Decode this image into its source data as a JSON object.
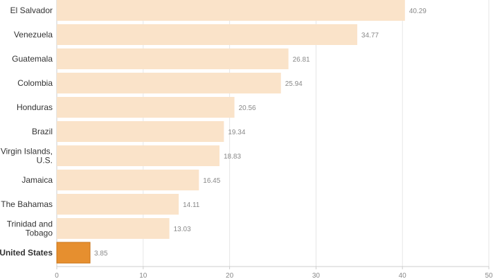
{
  "chart_data": {
    "type": "bar",
    "orientation": "horizontal",
    "categories": [
      "El Salvador",
      "Venezuela",
      "Guatemala",
      "Colombia",
      "Honduras",
      "Brazil",
      "Virgin Islands, U.S.",
      "Jamaica",
      "The Bahamas",
      "Trinidad and Tobago",
      "United States"
    ],
    "category_lines": [
      [
        "El Salvador"
      ],
      [
        "Venezuela"
      ],
      [
        "Guatemala"
      ],
      [
        "Colombia"
      ],
      [
        "Honduras"
      ],
      [
        "Brazil"
      ],
      [
        "Virgin Islands,",
        "U.S."
      ],
      [
        "Jamaica"
      ],
      [
        "The Bahamas"
      ],
      [
        "Trinidad and",
        "Tobago"
      ],
      [
        "United States"
      ]
    ],
    "values": [
      40.29,
      34.77,
      26.81,
      25.94,
      20.56,
      19.34,
      18.83,
      16.45,
      14.11,
      13.03,
      3.85
    ],
    "value_labels": [
      "40.29",
      "34.77",
      "26.81",
      "25.94",
      "20.56",
      "19.34",
      "18.83",
      "16.45",
      "14.11",
      "13.03",
      "3.85"
    ],
    "highlight_index": 10,
    "xlim": [
      0,
      50
    ],
    "x_ticks": [
      0,
      10,
      20,
      30,
      40,
      50
    ],
    "x_tick_labels": [
      "0",
      "10",
      "20",
      "30",
      "40",
      "50"
    ],
    "grid": true,
    "colors": {
      "bar": "#fae3c9",
      "highlight": "#e68f2f",
      "highlight_stroke": "#c97418"
    }
  }
}
